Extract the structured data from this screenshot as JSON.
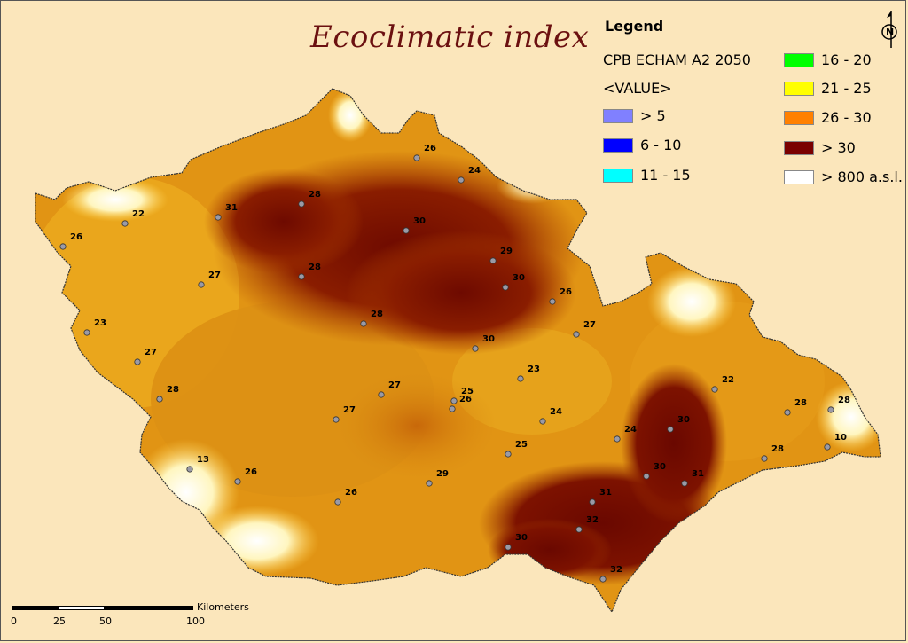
{
  "map": {
    "title": "Ecoclimatic index"
  },
  "legend": {
    "heading": "Legend",
    "layer_name": "CPB ECHAM A2 2050",
    "field_name": "<VALUE>",
    "classes": [
      {
        "label": "> 5",
        "color": "#8080ff"
      },
      {
        "label": "6 - 10",
        "color": "#0000ff"
      },
      {
        "label": "11 - 15",
        "color": "#00ffff"
      },
      {
        "label": "16 - 20",
        "color": "#00ff00"
      },
      {
        "label": "21 - 25",
        "color": "#ffff00"
      },
      {
        "label": "26 - 30",
        "color": "#ff8000"
      },
      {
        "label": "> 30",
        "color": "#7a0000"
      },
      {
        "label": "> 800 a.s.l.",
        "color": "#ffffff"
      }
    ]
  },
  "north_arrow": {
    "label": "N",
    "icon": "north-arrow-icon"
  },
  "scale_bar": {
    "ticks": [
      "0",
      "25",
      "50",
      "100"
    ],
    "unit": "Kilometers"
  },
  "stations": [
    {
      "value": "26"
    },
    {
      "value": "24"
    },
    {
      "value": "28"
    },
    {
      "value": "31"
    },
    {
      "value": "22"
    },
    {
      "value": "26"
    },
    {
      "value": "30"
    },
    {
      "value": "29"
    },
    {
      "value": "28"
    },
    {
      "value": "30"
    },
    {
      "value": "26"
    },
    {
      "value": "27"
    },
    {
      "value": "27"
    },
    {
      "value": "23"
    },
    {
      "value": "28"
    },
    {
      "value": "27"
    },
    {
      "value": "30"
    },
    {
      "value": "23"
    },
    {
      "value": "28"
    },
    {
      "value": "27"
    },
    {
      "value": "26"
    },
    {
      "value": "25"
    },
    {
      "value": "22"
    },
    {
      "value": "27"
    },
    {
      "value": "24"
    },
    {
      "value": "30"
    },
    {
      "value": "28"
    },
    {
      "value": "28"
    },
    {
      "value": "24"
    },
    {
      "value": "25"
    },
    {
      "value": "10"
    },
    {
      "value": "13"
    },
    {
      "value": "26"
    },
    {
      "value": "29"
    },
    {
      "value": "28"
    },
    {
      "value": "30"
    },
    {
      "value": "31"
    },
    {
      "value": "26"
    },
    {
      "value": "31"
    },
    {
      "value": "32"
    },
    {
      "value": "30"
    },
    {
      "value": "32"
    }
  ]
}
